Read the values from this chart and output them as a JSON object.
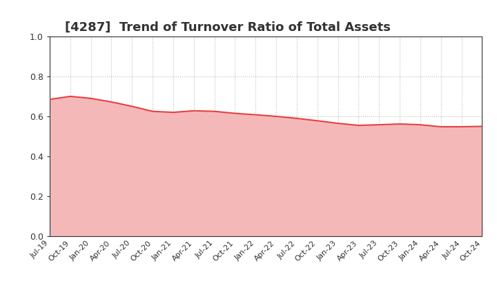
{
  "title": "[4287]  Trend of Turnover Ratio of Total Assets",
  "x_labels": [
    "Jul-19",
    "Oct-19",
    "Jan-20",
    "Apr-20",
    "Jul-20",
    "Oct-20",
    "Jan-21",
    "Apr-21",
    "Jul-21",
    "Oct-21",
    "Jan-22",
    "Apr-22",
    "Jul-22",
    "Oct-22",
    "Jan-23",
    "Apr-23",
    "Jul-23",
    "Oct-23",
    "Jan-24",
    "Apr-24",
    "Jul-24",
    "Oct-24"
  ],
  "y_values": [
    0.685,
    0.7,
    0.69,
    0.672,
    0.65,
    0.625,
    0.62,
    0.628,
    0.625,
    0.615,
    0.608,
    0.6,
    0.59,
    0.578,
    0.565,
    0.555,
    0.558,
    0.562,
    0.558,
    0.548,
    0.548,
    0.55
  ],
  "line_color": "#e84040",
  "fill_color": "#f5b8b8",
  "ylim": [
    0.0,
    1.0
  ],
  "yticks": [
    0.0,
    0.2,
    0.4,
    0.6,
    0.8,
    1.0
  ],
  "title_fontsize": 13,
  "background_color": "#ffffff",
  "grid_color": "#bbbbbb",
  "title_color": "#333333",
  "tick_color": "#333333",
  "spine_color": "#333333"
}
